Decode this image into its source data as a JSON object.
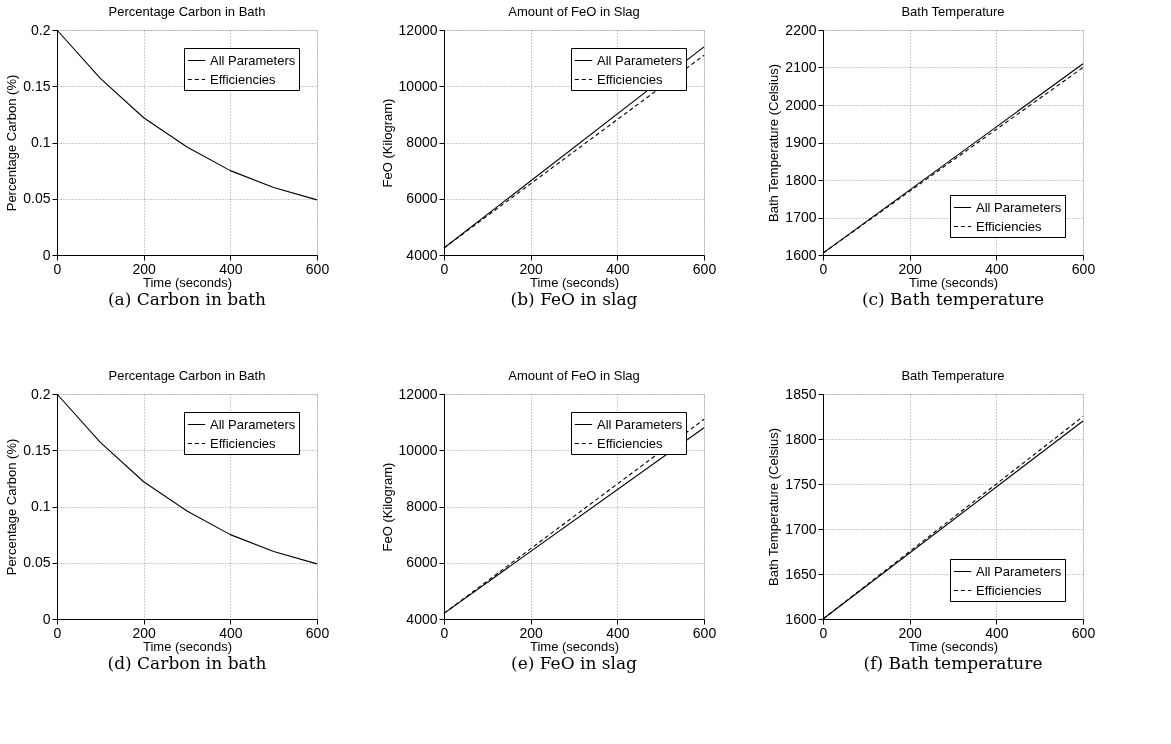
{
  "chart_data": [
    {
      "type": "line",
      "title": "Percentage Carbon in Bath",
      "xlabel": "Time (seconds)",
      "ylabel": "Percentage Carbon (%)",
      "x": [
        0,
        100,
        200,
        300,
        400,
        500,
        600
      ],
      "series": [
        {
          "name": "All Parameters",
          "color": "#000000",
          "line_style": "solid",
          "values": [
            0.2,
            0.157,
            0.122,
            0.096,
            0.075,
            0.06,
            0.049
          ]
        },
        {
          "name": "Efficiencies",
          "color": "#000000",
          "line_style": "dashed",
          "values": [
            null,
            null,
            null,
            null,
            null,
            null,
            null
          ]
        }
      ],
      "xlim": [
        0,
        600
      ],
      "xticks": [
        0,
        200,
        400,
        600
      ],
      "ylim": [
        0,
        0.2
      ],
      "yticks": [
        0,
        0.05,
        0.1,
        0.15,
        0.2
      ],
      "grid": true,
      "legend": "top right",
      "annotations": [
        "(a)  Carbon in bath"
      ]
    },
    {
      "type": "line",
      "title": "Amount of FeO in Slag",
      "xlabel": "Time (seconds)",
      "ylabel": "FeO (Kilogram)",
      "x": [
        0,
        600
      ],
      "series": [
        {
          "name": "All Parameters",
          "color": "#000000",
          "line_style": "solid",
          "values": [
            4250,
            11400
          ]
        },
        {
          "name": "Efficiencies",
          "color": "#000000",
          "line_style": "dashed",
          "values": [
            4250,
            11100
          ]
        }
      ],
      "xlim": [
        0,
        600
      ],
      "xticks": [
        0,
        200,
        400,
        600
      ],
      "ylim": [
        4000,
        12000
      ],
      "yticks": [
        4000,
        6000,
        8000,
        10000,
        12000
      ],
      "grid": true,
      "legend": "top right",
      "annotations": [
        "(b)  FeO in slag"
      ]
    },
    {
      "type": "line",
      "title": "Bath Temperature",
      "xlabel": "Time (seconds)",
      "ylabel": "Bath Temperature (Celsius)",
      "x": [
        0,
        600
      ],
      "series": [
        {
          "name": "All Parameters",
          "color": "#000000",
          "line_style": "solid",
          "values": [
            1605,
            2110
          ]
        },
        {
          "name": "Efficiencies",
          "color": "#000000",
          "line_style": "dashed",
          "values": [
            1605,
            2100
          ]
        }
      ],
      "xlim": [
        0,
        600
      ],
      "xticks": [
        0,
        200,
        400,
        600
      ],
      "ylim": [
        1600,
        2200
      ],
      "yticks": [
        1600,
        1700,
        1800,
        1900,
        2000,
        2100,
        2200
      ],
      "grid": true,
      "legend": "bottom right",
      "annotations": [
        "(c)  Bath temperature"
      ]
    },
    {
      "type": "line",
      "title": "Percentage Carbon in Bath",
      "xlabel": "Time (seconds)",
      "ylabel": "Percentage Carbon (%)",
      "x": [
        0,
        100,
        200,
        300,
        400,
        500,
        600
      ],
      "series": [
        {
          "name": "All Parameters",
          "color": "#000000",
          "line_style": "solid",
          "values": [
            0.2,
            0.157,
            0.122,
            0.096,
            0.075,
            0.06,
            0.049
          ]
        },
        {
          "name": "Efficiencies",
          "color": "#000000",
          "line_style": "dashed",
          "values": [
            null,
            null,
            null,
            null,
            null,
            null,
            null
          ]
        }
      ],
      "xlim": [
        0,
        600
      ],
      "xticks": [
        0,
        200,
        400,
        600
      ],
      "ylim": [
        0,
        0.2
      ],
      "yticks": [
        0,
        0.05,
        0.1,
        0.15,
        0.2
      ],
      "grid": true,
      "legend": "top right",
      "annotations": [
        "(d)  Carbon in bath"
      ]
    },
    {
      "type": "line",
      "title": "Amount of FeO in Slag",
      "xlabel": "Time (seconds)",
      "ylabel": "FeO (Kilogram)",
      "x": [
        0,
        600
      ],
      "series": [
        {
          "name": "All Parameters",
          "color": "#000000",
          "line_style": "solid",
          "values": [
            4200,
            10800
          ]
        },
        {
          "name": "Efficiencies",
          "color": "#000000",
          "line_style": "dashed",
          "values": [
            4200,
            11100
          ]
        }
      ],
      "xlim": [
        0,
        600
      ],
      "xticks": [
        0,
        200,
        400,
        600
      ],
      "ylim": [
        4000,
        12000
      ],
      "yticks": [
        4000,
        6000,
        8000,
        10000,
        12000
      ],
      "grid": true,
      "legend": "top right",
      "annotations": [
        "(e)  FeO in slag"
      ]
    },
    {
      "type": "line",
      "title": "Bath Temperature",
      "xlabel": "Time (seconds)",
      "ylabel": "Bath Temperature (Celsius)",
      "x": [
        0,
        600
      ],
      "series": [
        {
          "name": "All Parameters",
          "color": "#000000",
          "line_style": "solid",
          "values": [
            1600,
            1820
          ]
        },
        {
          "name": "Efficiencies",
          "color": "#000000",
          "line_style": "dashed",
          "values": [
            1600,
            1825
          ]
        }
      ],
      "xlim": [
        0,
        600
      ],
      "xticks": [
        0,
        200,
        400,
        600
      ],
      "ylim": [
        1600,
        1850
      ],
      "yticks": [
        1600,
        1650,
        1700,
        1750,
        1800,
        1850
      ],
      "grid": true,
      "legend": "bottom right",
      "annotations": [
        "(f)  Bath temperature"
      ]
    }
  ]
}
